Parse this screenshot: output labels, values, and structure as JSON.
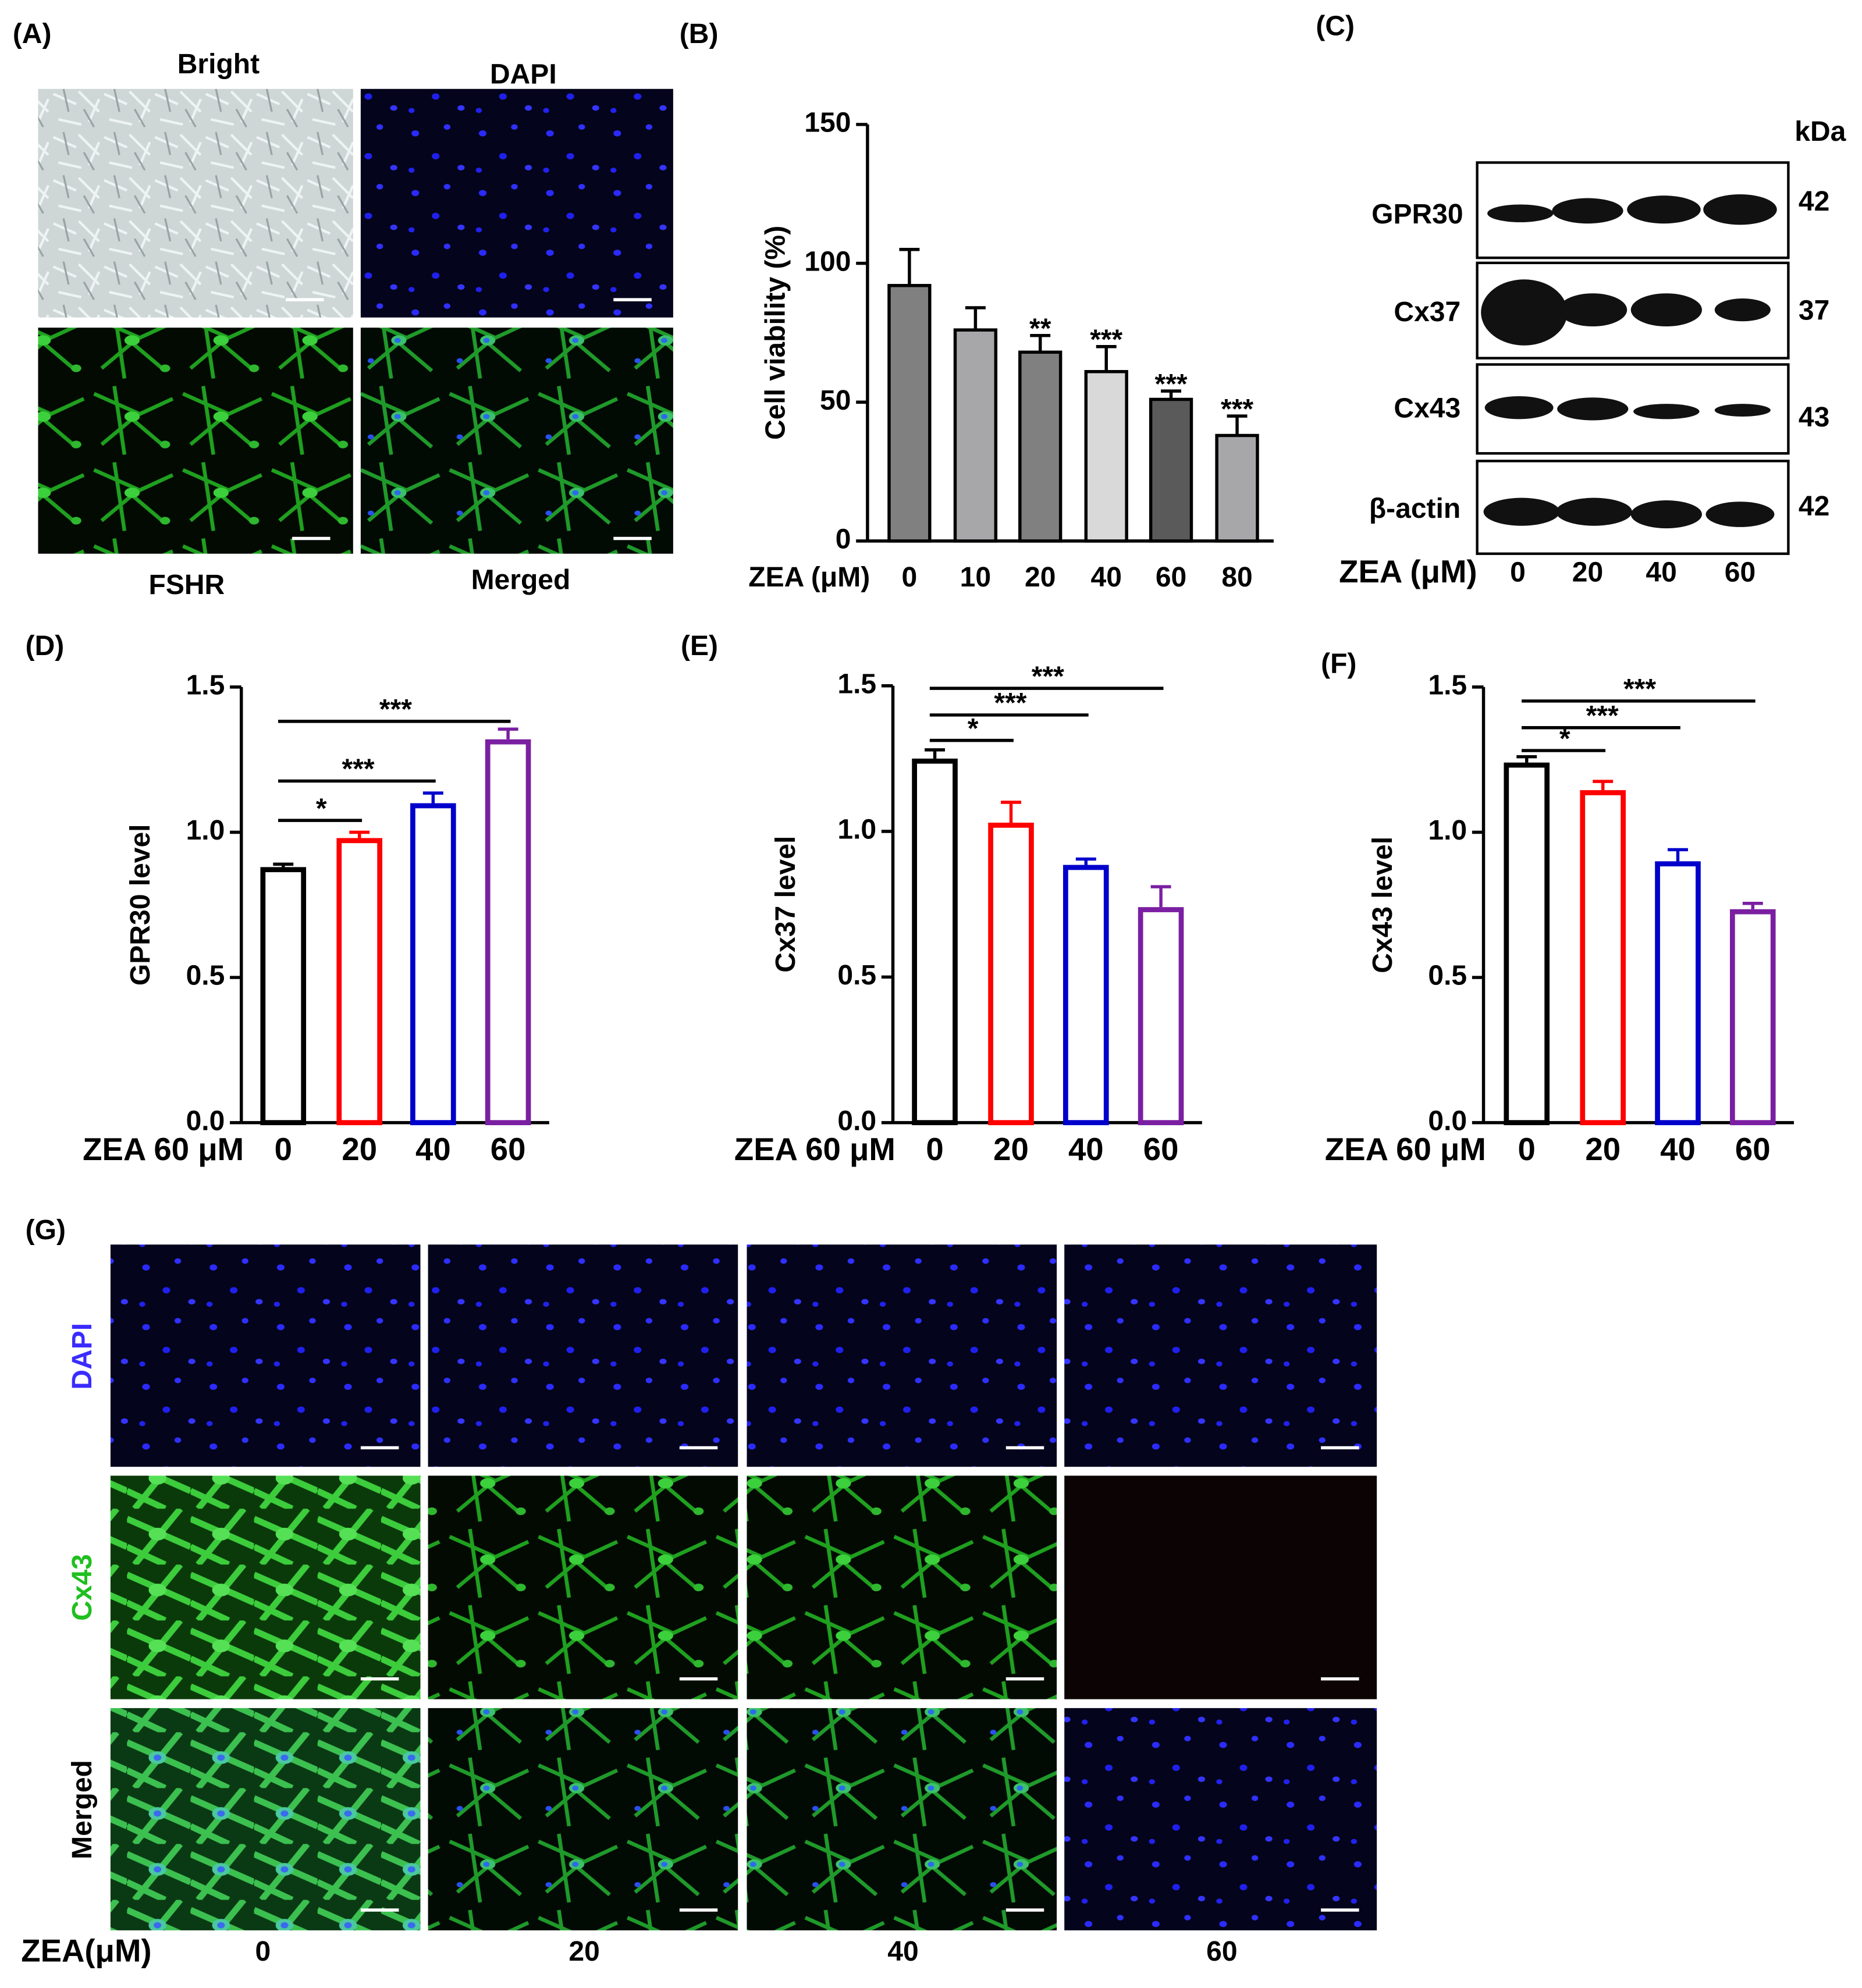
{
  "panel_labels": [
    "(A)",
    "(B)",
    "(C)",
    "(D)",
    "(E)",
    "(F)",
    "(G)"
  ],
  "panel_a": {
    "labels": [
      "Bright",
      "DAPI",
      "FSHR",
      "Merged"
    ]
  },
  "panel_c": {
    "proteins": [
      "GPR30",
      "Cx37",
      "Cx43",
      "β-actin"
    ],
    "kda_title": "kDa",
    "kda": [
      42,
      37,
      43,
      42
    ],
    "x_label": "ZEA (μM)",
    "lanes": [
      "0",
      "20",
      "40",
      "60"
    ]
  },
  "panel_g": {
    "rows": [
      "DAPI",
      "Cx43",
      "Merged"
    ],
    "x_label": "ZEA(μM)",
    "columns": [
      "0",
      "20",
      "40",
      "60"
    ]
  },
  "chart_data": [
    {
      "type": "bar",
      "bar_style": "filled",
      "y_label": "Cell viability (%)",
      "x_label": "ZEA (μM)",
      "categories": [
        "0",
        "10",
        "20",
        "40",
        "60",
        "80"
      ],
      "values": [
        92,
        76,
        68,
        61,
        51,
        38
      ],
      "errors": [
        13,
        8,
        6,
        9,
        3,
        7
      ],
      "colors": [
        "#808080",
        "#a7a7aa",
        "#808080",
        "#d9d9d9",
        "#5a5a5a",
        "#a7a7aa"
      ],
      "significance": [
        null,
        null,
        "**",
        "***",
        "***",
        "***"
      ],
      "ylim": [
        0,
        150
      ],
      "yticks": [
        0,
        50,
        100,
        150
      ]
    },
    {
      "type": "bar",
      "bar_style": "outline",
      "y_label": "GPR30 level",
      "x_label": "ZEA 60 μM",
      "categories": [
        "0",
        "20",
        "40",
        "60"
      ],
      "values": [
        0.88,
        0.98,
        1.1,
        1.32
      ],
      "errors": [
        0.01,
        0.02,
        0.035,
        0.035
      ],
      "colors": [
        "#000000",
        "#ff0000",
        "#0000cc",
        "#7b1fa2"
      ],
      "comparisons": [
        {
          "from": "0",
          "to": "20",
          "label": "*"
        },
        {
          "from": "0",
          "to": "40",
          "label": "***"
        },
        {
          "from": "0",
          "to": "60",
          "label": "***"
        }
      ],
      "ylim": [
        0,
        1.5
      ],
      "yticks": [
        {
          "value": 0,
          "label": "0.0"
        },
        0.5,
        {
          "value": 1,
          "label": "1.0"
        },
        1.5
      ]
    },
    {
      "type": "bar",
      "bar_style": "outline",
      "y_label": "Cx37 level",
      "x_label": "ZEA 60 μM",
      "categories": [
        "0",
        "20",
        "40",
        "60"
      ],
      "values": [
        1.25,
        1.03,
        0.885,
        0.74
      ],
      "errors": [
        0.03,
        0.07,
        0.02,
        0.07
      ],
      "colors": [
        "#000000",
        "#ff0000",
        "#0000cc",
        "#7b1fa2"
      ],
      "comparisons": [
        {
          "from": "0",
          "to": "20",
          "label": "*"
        },
        {
          "from": "0",
          "to": "40",
          "label": "***"
        },
        {
          "from": "0",
          "to": "60",
          "label": "***"
        }
      ],
      "ylim": [
        0,
        1.5
      ],
      "yticks": [
        {
          "value": 0,
          "label": "0.0"
        },
        0.5,
        {
          "value": 1,
          "label": "1.0"
        },
        1.5
      ]
    },
    {
      "type": "bar",
      "bar_style": "outline",
      "y_label": "Cx43 level",
      "x_label": "ZEA 60 μM",
      "categories": [
        "0",
        "20",
        "40",
        "60"
      ],
      "values": [
        1.24,
        1.145,
        0.9,
        0.735
      ],
      "errors": [
        0.02,
        0.03,
        0.04,
        0.02
      ],
      "colors": [
        "#000000",
        "#ff0000",
        "#0000cc",
        "#7b1fa2"
      ],
      "comparisons": [
        {
          "from": "0",
          "to": "20",
          "label": "*"
        },
        {
          "from": "0",
          "to": "40",
          "label": "***"
        },
        {
          "from": "0",
          "to": "60",
          "label": "***"
        }
      ],
      "ylim": [
        0,
        1.5
      ],
      "yticks": [
        {
          "value": 0,
          "label": "0.0"
        },
        0.5,
        {
          "value": 1,
          "label": "1.0"
        },
        1.5
      ]
    }
  ]
}
